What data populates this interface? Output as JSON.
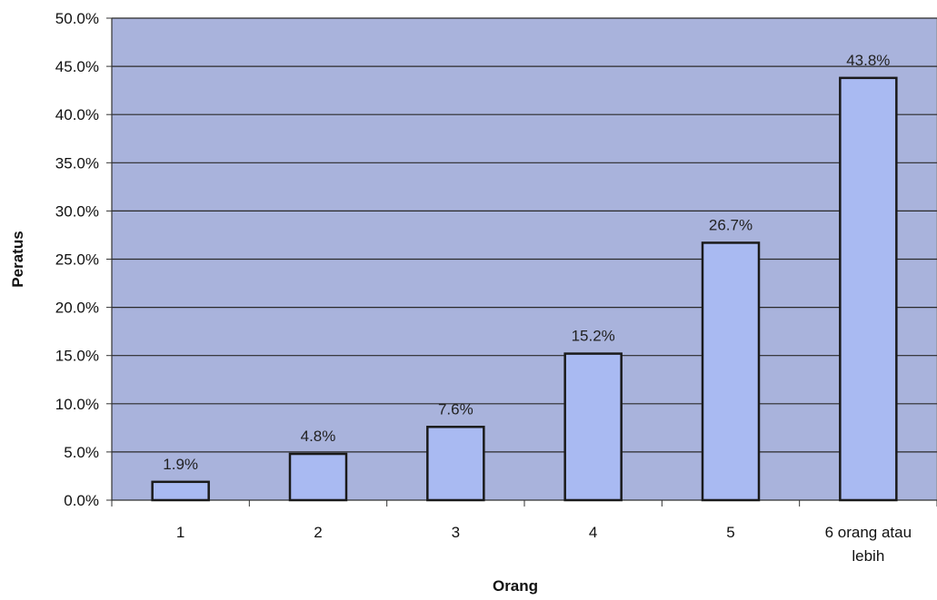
{
  "chart_data": {
    "type": "bar",
    "title": "",
    "xlabel": "Orang",
    "ylabel": "Peratus",
    "categories": [
      "1",
      "2",
      "3",
      "4",
      "5",
      "6 orang atau lebih"
    ],
    "category_lines": [
      [
        "1"
      ],
      [
        "2"
      ],
      [
        "3"
      ],
      [
        "4"
      ],
      [
        "5"
      ],
      [
        "6 orang atau",
        "lebih"
      ]
    ],
    "values": [
      1.9,
      4.8,
      7.6,
      15.2,
      26.7,
      43.8
    ],
    "data_labels": [
      "1.9%",
      "4.8%",
      "7.6%",
      "15.2%",
      "26.7%",
      "43.8%"
    ],
    "ylim": [
      0,
      50
    ],
    "yticks": [
      0,
      5,
      10,
      15,
      20,
      25,
      30,
      35,
      40,
      45,
      50
    ],
    "ytick_labels": [
      "0.0%",
      "5.0%",
      "10.0%",
      "15.0%",
      "20.0%",
      "25.0%",
      "30.0%",
      "35.0%",
      "40.0%",
      "45.0%",
      "50.0%"
    ],
    "grid": true,
    "legend": "none",
    "colors": {
      "plot_background": "#a9b3dc",
      "bar_fill": "#a9baf2",
      "bar_stroke": "#1a1a1a",
      "gridline": "#2a2a2a"
    }
  }
}
